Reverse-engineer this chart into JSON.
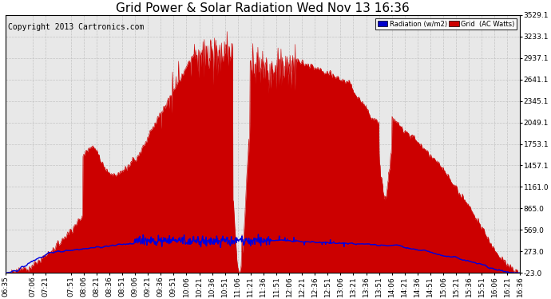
{
  "title": "Grid Power & Solar Radiation Wed Nov 13 16:36",
  "copyright": "Copyright 2013 Cartronics.com",
  "ylabel_right_ticks": [
    -23.0,
    273.0,
    569.0,
    865.0,
    1161.0,
    1457.1,
    1753.1,
    2049.1,
    2345.1,
    2641.1,
    2937.1,
    3233.1,
    3529.1
  ],
  "ymin": -23.0,
  "ymax": 3529.1,
  "background_color": "#e8e8e8",
  "grid_color": "#bbbbbb",
  "fill_color": "#cc0000",
  "line_color": "#0000dd",
  "legend_radiation_color": "#0000cc",
  "legend_grid_color": "#cc0000",
  "title_fontsize": 11,
  "copyright_fontsize": 7,
  "tick_label_fontsize": 6.5,
  "x_labels": [
    "06:35",
    "07:06",
    "07:21",
    "07:51",
    "08:06",
    "08:21",
    "08:36",
    "08:51",
    "09:06",
    "09:21",
    "09:36",
    "09:51",
    "10:06",
    "10:21",
    "10:36",
    "10:51",
    "11:06",
    "11:21",
    "11:36",
    "11:51",
    "12:06",
    "12:21",
    "12:36",
    "12:51",
    "13:06",
    "13:21",
    "13:36",
    "13:51",
    "14:06",
    "14:21",
    "14:36",
    "14:51",
    "15:06",
    "15:21",
    "15:36",
    "15:51",
    "16:06",
    "16:21",
    "16:36"
  ]
}
